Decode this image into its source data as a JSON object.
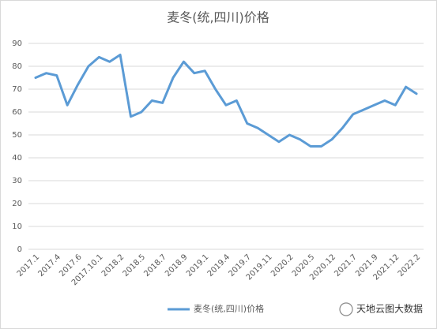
{
  "chart_data": {
    "type": "line",
    "title": "麦冬(统,四川)价格",
    "categories": [
      "2017.1",
      null,
      "2017.4",
      null,
      "2017.6",
      null,
      "2017.10.1",
      null,
      "2018.2",
      null,
      "2018.5",
      null,
      "2018.7",
      null,
      "2018.9",
      null,
      "2019.1",
      null,
      "2019.4",
      null,
      "2019.7",
      null,
      "2019.11",
      null,
      "2020.2",
      null,
      "2020.5",
      null,
      "2020.12",
      null,
      "2021.7",
      null,
      "2021.9",
      null,
      "2021.12",
      null,
      "2022.2"
    ],
    "series": [
      {
        "name": "麦冬(统,四川)价格",
        "color": "#5b9bd5",
        "values": [
          75,
          77,
          76,
          63,
          72,
          80,
          84,
          82,
          85,
          58,
          60,
          65,
          64,
          75,
          82,
          77,
          78,
          70,
          63,
          65,
          55,
          53,
          50,
          47,
          50,
          48,
          45,
          45,
          48,
          53,
          59,
          61,
          63,
          65,
          63,
          71,
          68
        ]
      }
    ],
    "ylim": [
      0,
      90
    ],
    "yticks": [
      0,
      10,
      20,
      30,
      40,
      50,
      60,
      70,
      80,
      90
    ],
    "grid": true,
    "legend": "bottom",
    "watermark": "天地云图大数据"
  }
}
